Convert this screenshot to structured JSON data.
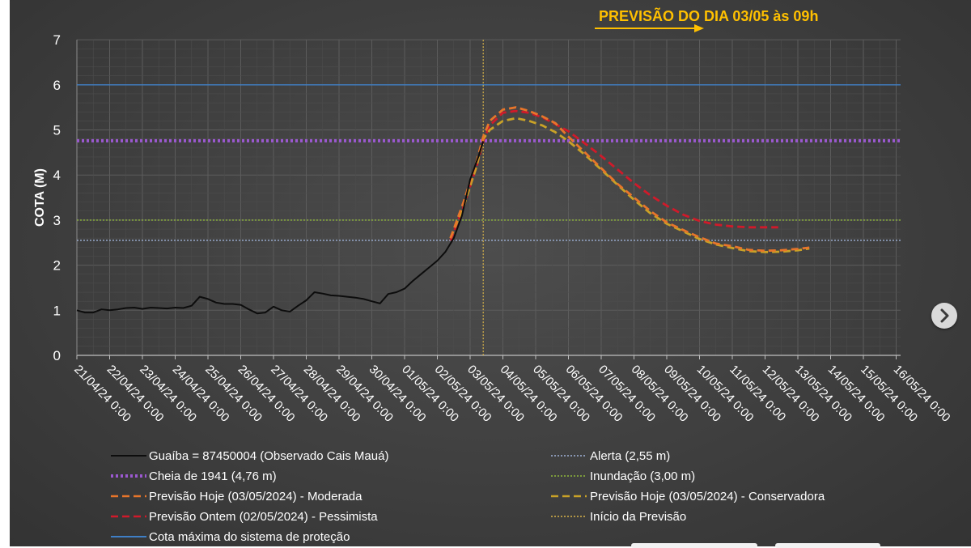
{
  "chart_data": {
    "type": "line",
    "title": "PREVISÃO DO DIA 03/05 às 09h",
    "ylabel": "COTA (M)",
    "xlabel": "",
    "ylim": [
      0,
      7
    ],
    "yticks": [
      "0",
      "1",
      "2",
      "3",
      "4",
      "5",
      "6",
      "7"
    ],
    "grid": true,
    "legend_position": "bottom",
    "x_categories": [
      "21/04/24 0:00",
      "22/04/24 0:00",
      "23/04/24 0:00",
      "24/04/24 0:00",
      "25/04/24 0:00",
      "26/04/24 0:00",
      "27/04/24 0:00",
      "28/04/24 0:00",
      "29/04/24 0:00",
      "30/04/24 0:00",
      "01/05/24 0:00",
      "02/05/24 0:00",
      "03/05/24 0:00",
      "04/05/24 0:00",
      "05/05/24 0:00",
      "06/05/24 0:00",
      "07/05/24 0:00",
      "08/05/24 0:00",
      "09/05/24 0:00",
      "10/05/24 0:00",
      "11/05/24 0:00",
      "12/05/24 0:00",
      "13/05/24 0:00",
      "14/05/24 0:00",
      "15/05/24 0:00",
      "16/05/24 0:00"
    ],
    "x_unit": "days since 21/04/24 0:00",
    "series": [
      {
        "name": "Guaíba = 87450004 (Observado Cais Mauá)",
        "color": "#0d0d0d",
        "style": "solid",
        "points": [
          [
            0,
            1.0
          ],
          [
            0.25,
            0.95
          ],
          [
            0.5,
            0.95
          ],
          [
            0.75,
            1.02
          ],
          [
            1.0,
            1.0
          ],
          [
            1.25,
            1.02
          ],
          [
            1.5,
            1.05
          ],
          [
            1.75,
            1.06
          ],
          [
            2.0,
            1.03
          ],
          [
            2.25,
            1.06
          ],
          [
            2.5,
            1.05
          ],
          [
            2.75,
            1.04
          ],
          [
            3.0,
            1.06
          ],
          [
            3.25,
            1.05
          ],
          [
            3.5,
            1.1
          ],
          [
            3.75,
            1.3
          ],
          [
            4.0,
            1.25
          ],
          [
            4.25,
            1.17
          ],
          [
            4.5,
            1.14
          ],
          [
            4.75,
            1.14
          ],
          [
            5.0,
            1.12
          ],
          [
            5.25,
            1.02
          ],
          [
            5.5,
            0.93
          ],
          [
            5.75,
            0.95
          ],
          [
            6.0,
            1.08
          ],
          [
            6.25,
            1.0
          ],
          [
            6.5,
            0.97
          ],
          [
            6.75,
            1.1
          ],
          [
            7.0,
            1.22
          ],
          [
            7.25,
            1.4
          ],
          [
            7.5,
            1.37
          ],
          [
            7.75,
            1.33
          ],
          [
            8.0,
            1.32
          ],
          [
            8.25,
            1.3
          ],
          [
            8.5,
            1.28
          ],
          [
            8.75,
            1.25
          ],
          [
            9.0,
            1.2
          ],
          [
            9.25,
            1.15
          ],
          [
            9.5,
            1.36
          ],
          [
            9.75,
            1.4
          ],
          [
            10.0,
            1.48
          ],
          [
            10.25,
            1.65
          ],
          [
            10.5,
            1.8
          ],
          [
            10.75,
            1.95
          ],
          [
            11.0,
            2.1
          ],
          [
            11.25,
            2.3
          ],
          [
            11.5,
            2.6
          ],
          [
            11.75,
            3.1
          ],
          [
            12.0,
            3.9
          ],
          [
            12.25,
            4.4
          ],
          [
            12.4,
            4.75
          ]
        ]
      },
      {
        "name": "Previsão Hoje (03/05/2024) - Moderada",
        "color": "#e8752a",
        "style": "dashed",
        "points": [
          [
            11.4,
            2.6
          ],
          [
            11.8,
            3.4
          ],
          [
            12.2,
            4.3
          ],
          [
            12.4,
            4.85
          ],
          [
            12.6,
            5.2
          ],
          [
            13.0,
            5.45
          ],
          [
            13.4,
            5.5
          ],
          [
            13.8,
            5.42
          ],
          [
            14.2,
            5.3
          ],
          [
            14.6,
            5.15
          ],
          [
            15.0,
            4.85
          ],
          [
            15.5,
            4.5
          ],
          [
            16.0,
            4.15
          ],
          [
            16.5,
            3.8
          ],
          [
            17.0,
            3.5
          ],
          [
            17.5,
            3.2
          ],
          [
            18.0,
            2.95
          ],
          [
            18.5,
            2.78
          ],
          [
            19.0,
            2.62
          ],
          [
            19.5,
            2.48
          ],
          [
            20.0,
            2.42
          ],
          [
            20.5,
            2.34
          ],
          [
            21.0,
            2.32
          ],
          [
            21.5,
            2.33
          ],
          [
            22.0,
            2.36
          ],
          [
            22.35,
            2.39
          ]
        ]
      },
      {
        "name": "Previsão Hoje (03/05/2024) - Conservadora",
        "color": "#c9a227",
        "style": "dashed",
        "points": [
          [
            11.4,
            2.6
          ],
          [
            11.8,
            3.3
          ],
          [
            12.2,
            4.2
          ],
          [
            12.4,
            4.8
          ],
          [
            12.6,
            5.0
          ],
          [
            13.0,
            5.2
          ],
          [
            13.4,
            5.26
          ],
          [
            13.8,
            5.2
          ],
          [
            14.2,
            5.1
          ],
          [
            14.6,
            4.95
          ],
          [
            15.0,
            4.75
          ],
          [
            15.5,
            4.45
          ],
          [
            16.0,
            4.12
          ],
          [
            16.5,
            3.78
          ],
          [
            17.0,
            3.45
          ],
          [
            17.5,
            3.15
          ],
          [
            18.0,
            2.92
          ],
          [
            18.5,
            2.75
          ],
          [
            19.0,
            2.58
          ],
          [
            19.5,
            2.46
          ],
          [
            20.0,
            2.38
          ],
          [
            20.5,
            2.31
          ],
          [
            21.0,
            2.29
          ],
          [
            21.5,
            2.3
          ],
          [
            22.0,
            2.33
          ],
          [
            22.35,
            2.37
          ]
        ]
      },
      {
        "name": "Previsão Ontem (02/05/2024) - Pessimista",
        "color": "#d01a2a",
        "style": "dashed",
        "points": [
          [
            11.4,
            2.55
          ],
          [
            11.8,
            3.3
          ],
          [
            12.2,
            4.2
          ],
          [
            12.4,
            4.75
          ],
          [
            12.6,
            5.1
          ],
          [
            13.0,
            5.38
          ],
          [
            13.4,
            5.42
          ],
          [
            13.8,
            5.38
          ],
          [
            14.2,
            5.28
          ],
          [
            14.6,
            5.13
          ],
          [
            15.0,
            4.97
          ],
          [
            15.5,
            4.7
          ],
          [
            16.0,
            4.42
          ],
          [
            16.5,
            4.12
          ],
          [
            17.0,
            3.82
          ],
          [
            17.5,
            3.55
          ],
          [
            18.0,
            3.32
          ],
          [
            18.5,
            3.12
          ],
          [
            19.0,
            2.98
          ],
          [
            19.5,
            2.9
          ],
          [
            20.0,
            2.86
          ],
          [
            20.5,
            2.84
          ],
          [
            21.0,
            2.84
          ],
          [
            21.4,
            2.84
          ]
        ]
      }
    ],
    "reference_lines": [
      {
        "name": "Alerta  (2,55 m)",
        "value": 2.55,
        "color": "#9fb3d9",
        "style": "dotted"
      },
      {
        "name": "Cheia de 1941 (4,76 m)",
        "value": 4.76,
        "color": "#9b59d0",
        "style": "bold-dotted"
      },
      {
        "name": "Inundação  (3,00 m)",
        "value": 3.0,
        "color": "#8fb83a",
        "style": "dotted"
      },
      {
        "name": "Cota máxima do sistema de proteção",
        "value": 6.0,
        "color": "#3f7fc6",
        "style": "solid"
      }
    ],
    "vertical_lines": [
      {
        "name": "Início da Previsão",
        "x": 12.4,
        "color": "#d9b44a",
        "style": "dotted"
      }
    ],
    "annotation": {
      "arrow_color": "#ffc000",
      "title_color": "#ffc000"
    }
  },
  "legend": {
    "left": [
      {
        "label": "Guaíba = 87450004 (Observado Cais Mauá)",
        "color": "#0d0d0d",
        "style": "solid"
      },
      {
        "label": "Cheia de 1941 (4,76 m)",
        "color": "#9b59d0",
        "style": "bold-dotted"
      },
      {
        "label": "Previsão Hoje (03/05/2024) - Moderada",
        "color": "#e8752a",
        "style": "dashed"
      },
      {
        "label": "Previsão Ontem (02/05/2024) - Pessimista",
        "color": "#d01a2a",
        "style": "dashed"
      },
      {
        "label": "Cota máxima do sistema de proteção",
        "color": "#3f7fc6",
        "style": "solid"
      }
    ],
    "right": [
      {
        "label": "Alerta  (2,55 m)",
        "color": "#9fb3d9",
        "style": "dotted"
      },
      {
        "label": "Inundação  (3,00 m)",
        "color": "#8fb83a",
        "style": "dotted"
      },
      {
        "label": "Previsão Hoje (03/05/2024) - Conservadora",
        "color": "#c9a227",
        "style": "dashed"
      },
      {
        "label": "Início da Previsão",
        "color": "#d9b44a",
        "style": "dotted"
      }
    ]
  },
  "nav": {
    "icon": "chevron-right-icon"
  }
}
